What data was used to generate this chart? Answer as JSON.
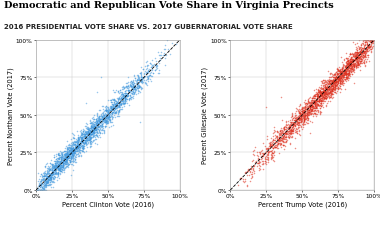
{
  "title": "Democratic and Republican Vote Share in Virginia Precincts",
  "subtitle": "2016 PRESIDENTIAL VOTE SHARE VS. 2017 GUBERNATORIAL VOTE SHARE",
  "left_xlabel": "Percent Clinton Vote (2016)",
  "left_ylabel": "Percent Northam Vote (2017)",
  "right_xlabel": "Percent Trump Vote (2016)",
  "right_ylabel": "Percent Gillespie Vote (2017)",
  "blue_color": "#4499dd",
  "red_color": "#dd3322",
  "dot_size": 1.2,
  "dot_alpha": 0.55,
  "n_points": 2400,
  "xlim": [
    0,
    1
  ],
  "ylim": [
    0,
    1
  ],
  "tick_vals": [
    0,
    0.25,
    0.5,
    0.75,
    1.0
  ],
  "tick_labels": [
    "0%",
    "25%",
    "50%",
    "75%",
    "100%"
  ],
  "title_fontsize": 7.0,
  "subtitle_fontsize": 5.0,
  "axis_label_fontsize": 4.8,
  "tick_fontsize": 4.2
}
